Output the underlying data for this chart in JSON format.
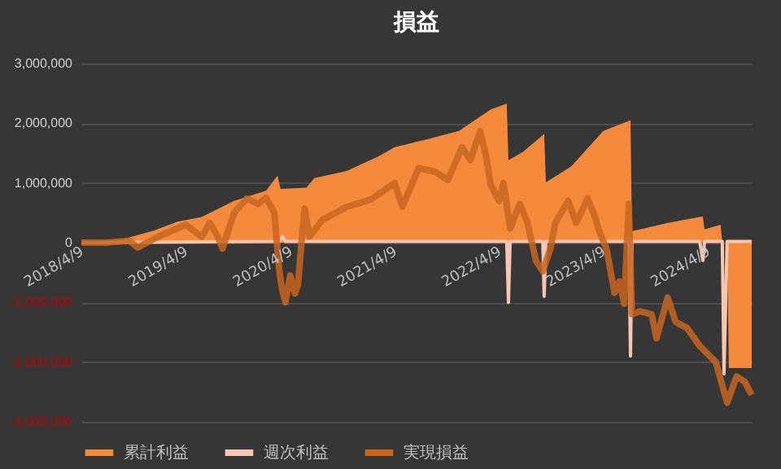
{
  "chart_data": {
    "type": "area",
    "title": "損益",
    "legend": "bottom",
    "grid": "y",
    "xlim": [
      "2018-04-09",
      "2024-09-09"
    ],
    "xticks": [
      {
        "value": "2018-04-09",
        "label": "2018/4/9"
      },
      {
        "value": "2019-04-09",
        "label": "2019/4/9"
      },
      {
        "value": "2020-04-09",
        "label": "2020/4/9"
      },
      {
        "value": "2021-04-09",
        "label": "2021/4/9"
      },
      {
        "value": "2022-04-09",
        "label": "2022/4/9"
      },
      {
        "value": "2023-04-09",
        "label": "2023/4/9"
      },
      {
        "value": "2024-04-09",
        "label": "2024/4/9"
      }
    ],
    "ylim": [
      -3000000,
      3000000
    ],
    "yticks": [
      {
        "value": -3000000,
        "label": "-3,000,000"
      },
      {
        "value": -2000000,
        "label": "-2,000,000"
      },
      {
        "value": -1000000,
        "label": "-1,000,000"
      },
      0,
      {
        "value": 1000000,
        "label": "1,000,000"
      },
      {
        "value": 2000000,
        "label": "2,000,000"
      },
      {
        "value": 3000000,
        "label": "3,000,000"
      }
    ],
    "series": [
      {
        "name": "累計利益",
        "color": "#f58a3c",
        "x": [
          "2018-04-09",
          "2018-08-27",
          "2018-12-18",
          "2019-03-11",
          "2019-06-04",
          "2019-09-25",
          "2020-01-15",
          "2020-02-24",
          "2020-03-06",
          "2020-06-04",
          "2020-07-02",
          "2020-10-23",
          "2021-02-13",
          "2021-04-09",
          "2021-07-30",
          "2021-11-20",
          "2022-03-11",
          "2022-05-06",
          "2022-05-12",
          "2022-07-02",
          "2022-09-14",
          "2022-09-20",
          "2022-12-18",
          "2023-04-09",
          "2023-07-13",
          "2023-07-18",
          "2023-11-20",
          "2024-03-22",
          "2024-03-28",
          "2024-05-23",
          "2024-05-29",
          "2024-06-15",
          "2024-06-21",
          "2024-09-09"
        ],
        "values": [
          0,
          50000,
          200000,
          350000,
          430000,
          700000,
          870000,
          1120000,
          900000,
          920000,
          1080000,
          1200000,
          1450000,
          1600000,
          1730000,
          1870000,
          2230000,
          2330000,
          1380000,
          1520000,
          1820000,
          1010000,
          1280000,
          1870000,
          2050000,
          190000,
          330000,
          440000,
          220000,
          300000,
          0,
          0,
          -2100000,
          -2100000
        ]
      },
      {
        "name": "週次利益",
        "type": "line",
        "color": "#f9c6b4",
        "x": [
          "2018-04-09",
          "2020-03-02",
          "2020-03-12",
          "2020-03-23",
          "2022-05-06",
          "2022-05-12",
          "2022-05-18",
          "2022-09-09",
          "2022-09-14",
          "2022-09-20",
          "2023-07-07",
          "2023-07-13",
          "2023-07-18",
          "2024-03-11",
          "2024-03-22",
          "2024-03-28",
          "2024-05-29",
          "2024-06-04",
          "2024-06-15",
          "2024-09-09"
        ],
        "values": [
          0,
          20000,
          100000,
          20000,
          20000,
          -1000000,
          20000,
          20000,
          -900000,
          20000,
          20000,
          -1900000,
          20000,
          20000,
          -300000,
          20000,
          20000,
          -2200000,
          20000,
          20000
        ]
      },
      {
        "name": "実現損益",
        "type": "line",
        "color": "#c8651f",
        "x": [
          "2018-04-09",
          "2018-07-02",
          "2018-09-25",
          "2018-10-23",
          "2019-01-16",
          "2019-04-09",
          "2019-06-04",
          "2019-07-02",
          "2019-07-30",
          "2019-08-16",
          "2019-09-25",
          "2019-11-09",
          "2019-12-18",
          "2020-01-15",
          "2020-02-13",
          "2020-03-02",
          "2020-03-12",
          "2020-03-23",
          "2020-04-09",
          "2020-04-25",
          "2020-05-06",
          "2020-05-18",
          "2020-05-29",
          "2020-06-15",
          "2020-07-30",
          "2020-10-23",
          "2021-01-15",
          "2021-04-09",
          "2021-05-06",
          "2021-07-02",
          "2021-08-27",
          "2021-10-12",
          "2021-12-01",
          "2021-12-30",
          "2022-02-02",
          "2022-02-24",
          "2022-03-11",
          "2022-04-09",
          "2022-04-25",
          "2022-05-18",
          "2022-06-21",
          "2022-07-18",
          "2022-08-16",
          "2022-09-09",
          "2022-10-06",
          "2022-10-23",
          "2022-12-07",
          "2023-01-04",
          "2023-02-13",
          "2023-03-11",
          "2023-03-28",
          "2023-04-20",
          "2023-05-18",
          "2023-06-04",
          "2023-06-21",
          "2023-07-07",
          "2023-07-18",
          "2023-08-16",
          "2023-09-25",
          "2023-10-12",
          "2023-11-20",
          "2023-12-18",
          "2024-01-27",
          "2024-03-11",
          "2024-05-06",
          "2024-06-15",
          "2024-07-18",
          "2024-08-16",
          "2024-09-09"
        ],
        "values": [
          0,
          0,
          30000,
          -80000,
          130000,
          300000,
          100000,
          330000,
          100000,
          -100000,
          500000,
          740000,
          650000,
          750000,
          500000,
          -500000,
          -800000,
          -1000000,
          -550000,
          -850000,
          -700000,
          0,
          570000,
          100000,
          380000,
          600000,
          720000,
          1000000,
          600000,
          1250000,
          1190000,
          1050000,
          1600000,
          1380000,
          1870000,
          1420000,
          970000,
          700000,
          1000000,
          240000,
          650000,
          330000,
          -300000,
          -480000,
          -100000,
          330000,
          700000,
          330000,
          740000,
          430000,
          160000,
          -100000,
          -840000,
          -650000,
          -1020000,
          650000,
          -1200000,
          -1150000,
          -1200000,
          -1600000,
          -920000,
          -1330000,
          -1430000,
          -1730000,
          -2000000,
          -2680000,
          -2240000,
          -2330000,
          -2550000
        ]
      }
    ]
  }
}
